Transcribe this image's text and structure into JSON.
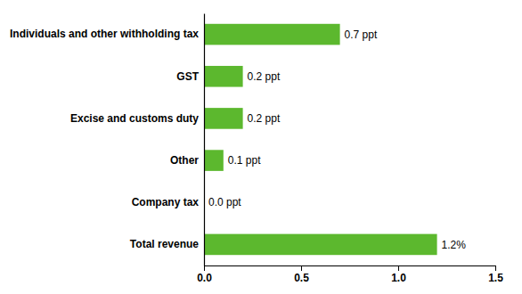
{
  "chart_data": {
    "type": "bar",
    "orientation": "horizontal",
    "categories": [
      "Total revenue",
      "Company tax",
      "Other",
      "Excise and customs duty",
      "GST",
      "Individuals and other withholding tax"
    ],
    "values": [
      1.2,
      0.0,
      0.1,
      0.2,
      0.2,
      0.7
    ],
    "value_labels": [
      "1.2%",
      "0.0 ppt",
      "0.1 ppt",
      "0.2 ppt",
      "0.2 ppt",
      "0.7 ppt"
    ],
    "data_labels": true,
    "color": "#5cb82e",
    "xlim": [
      0,
      1.5
    ],
    "xticks": [
      {
        "value": 0.0,
        "label": "0.0"
      },
      {
        "value": 0.5,
        "label": "0.5"
      },
      {
        "value": 1.0,
        "label": "1.0"
      },
      1.5
    ],
    "grid": false
  }
}
